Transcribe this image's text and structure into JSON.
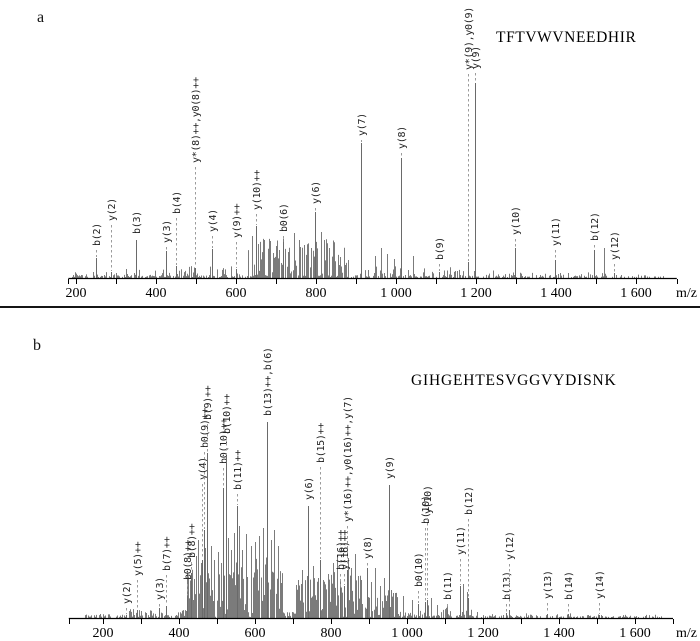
{
  "page": {
    "background": "#ffffff"
  },
  "colors": {
    "noise_peak": "#7b7b7b",
    "annotated_peak": "#6a6a6a",
    "axis": "#000000",
    "label": "#222222",
    "leader_dash": "#9b9b9b",
    "divider": "#151515"
  },
  "chart_data": [
    {
      "type": "bar",
      "subtype": "ms2-fragment-spectrum",
      "panel_label": "a",
      "title": "TFTVWVNEEDHIR",
      "xlabel": "m/z",
      "x_range": [
        181,
        1702
      ],
      "ylim": [
        0,
        210
      ],
      "grid": false,
      "ticks": {
        "minor_first": 200,
        "minor_last": 1600,
        "minor_step": 100,
        "major": [
          [
            200,
            "200"
          ],
          [
            400,
            "400"
          ],
          [
            600,
            "600"
          ],
          [
            800,
            "800"
          ],
          [
            1000,
            "1 000"
          ],
          [
            1200,
            "1 200"
          ],
          [
            1400,
            "1 400"
          ],
          [
            1600,
            "1 600"
          ]
        ]
      },
      "annotated_peaks": [
        {
          "label": "b(2)",
          "mz": 249.1,
          "h": 20,
          "lab": 30
        },
        {
          "label": "y(2)",
          "mz": 288.2,
          "h": 6,
          "lab": 55
        },
        {
          "label": "b(3)",
          "mz": 350.2,
          "h": 38,
          "lab": 42
        },
        {
          "label": "y(3)",
          "mz": 425.3,
          "h": 27,
          "lab": 33
        },
        {
          "label": "b(4)",
          "mz": 449.2,
          "h": 12,
          "lab": 62
        },
        {
          "label": "y*(8)++,y0(8)++",
          "mz": 497.3,
          "h": 10,
          "lab": 113
        },
        {
          "label": "y(4)",
          "mz": 540.3,
          "h": 29,
          "lab": 44
        },
        {
          "label": "y(9)++",
          "mz": 599.3,
          "h": 9,
          "lab": 38
        },
        {
          "label": "y(10)++",
          "mz": 648.8,
          "h": 52,
          "lab": 66
        },
        {
          "label": "b0(6)",
          "mz": 716.4,
          "h": 36,
          "lab": 44
        },
        {
          "label": "y(6)",
          "mz": 798.4,
          "h": 66,
          "lab": 72
        },
        {
          "label": "y(7)",
          "mz": 912.4,
          "h": 135,
          "lab": 140
        },
        {
          "label": "y(8)",
          "mz": 1011.5,
          "h": 120,
          "lab": 127
        },
        {
          "label": "b(9)",
          "mz": 1106.5,
          "h": 6,
          "lab": 16
        },
        {
          "label": "y*(9),y0(9)",
          "mz": 1180.5,
          "h": 16,
          "lab": 206
        },
        {
          "label": "y(9)",
          "mz": 1197.6,
          "h": 195,
          "lab": 207
        },
        {
          "label": "y(10)",
          "mz": 1296.6,
          "h": 30,
          "lab": 41
        },
        {
          "label": "y(11)",
          "mz": 1397.7,
          "h": 18,
          "lab": 30
        },
        {
          "label": "b(12)",
          "mz": 1494.7,
          "h": 28,
          "lab": 35
        },
        {
          "label": "y(12)",
          "mz": 1544.8,
          "h": 5,
          "lab": 16
        }
      ],
      "minor_peaks": [
        [
          640,
          42
        ],
        [
          656,
          34
        ],
        [
          671,
          38
        ],
        [
          692,
          25
        ],
        [
          700,
          32
        ],
        [
          708,
          28
        ],
        [
          730,
          26
        ],
        [
          745,
          45
        ],
        [
          757,
          38
        ],
        [
          771,
          33
        ],
        [
          788,
          30
        ],
        [
          812,
          46
        ],
        [
          820,
          38
        ],
        [
          833,
          30
        ],
        [
          845,
          24
        ],
        [
          860,
          21
        ],
        [
          880,
          18
        ],
        [
          948,
          22
        ],
        [
          962,
          30
        ],
        [
          978,
          24
        ],
        [
          995,
          19
        ],
        [
          1042,
          22
        ],
        [
          1519,
          30
        ]
      ],
      "noise": {
        "seed": 11,
        "segments": [
          [
            190,
            1670,
            320,
            1,
            3
          ],
          [
            190,
            300,
            25,
            1,
            6
          ],
          [
            300,
            470,
            40,
            1,
            9
          ],
          [
            470,
            625,
            40,
            1,
            12
          ],
          [
            625,
            875,
            110,
            2,
            40
          ],
          [
            875,
            1160,
            55,
            1,
            12
          ],
          [
            1160,
            1300,
            25,
            1,
            8
          ],
          [
            1300,
            1490,
            25,
            1,
            6
          ],
          [
            1490,
            1670,
            15,
            1,
            5
          ]
        ]
      }
    },
    {
      "type": "bar",
      "subtype": "ms2-fragment-spectrum",
      "panel_label": "b",
      "title": "GIHGEHTESVGGVYDISNK",
      "xlabel": "m/z",
      "x_range": [
        110,
        1700
      ],
      "ylim": [
        0,
        210
      ],
      "grid": false,
      "ticks": {
        "minor_first": 200,
        "minor_last": 1600,
        "minor_step": 100,
        "major": [
          [
            200,
            "200"
          ],
          [
            400,
            "400"
          ],
          [
            600,
            "600"
          ],
          [
            800,
            "800"
          ],
          [
            1000,
            "1 000"
          ],
          [
            1200,
            "1 200"
          ],
          [
            1400,
            "1 400"
          ],
          [
            1600,
            "1 600"
          ]
        ]
      },
      "annotated_peaks": [
        {
          "label": "y(2)",
          "mz": 261.2,
          "h": 3,
          "lab": 12
        },
        {
          "label": "y(5)++",
          "mz": 288.7,
          "h": 8,
          "lab": 40
        },
        {
          "label": "y(3)",
          "mz": 348.2,
          "h": 10,
          "lab": 16
        },
        {
          "label": "b(7)++",
          "mz": 366.7,
          "h": 12,
          "lab": 45
        },
        {
          "label": "b0(8)++",
          "mz": 422.2,
          "h": 22,
          "lab": 36
        },
        {
          "label": "b(8)++",
          "mz": 431.2,
          "h": 45,
          "lab": 58
        },
        {
          "label": "y(4)",
          "mz": 461.3,
          "h": 58,
          "lab": 136
        },
        {
          "label": "b0(9)++",
          "mz": 465.7,
          "h": 88,
          "lab": 168
        },
        {
          "label": "b(9)++",
          "mz": 474.7,
          "h": 165,
          "lab": 196
        },
        {
          "label": "b0(10)++",
          "mz": 515.3,
          "h": 130,
          "lab": 152
        },
        {
          "label": "b(10)++",
          "mz": 524.3,
          "h": 162,
          "lab": 182
        },
        {
          "label": "b(11)++",
          "mz": 552.8,
          "h": 112,
          "lab": 126
        },
        {
          "label": "b(13)++,b(6)",
          "mz": 630.8,
          "h": 196,
          "lab": 200
        },
        {
          "label": "y(6)",
          "mz": 739.4,
          "h": 112,
          "lab": 116
        },
        {
          "label": "b(15)++",
          "mz": 769.9,
          "h": 58,
          "lab": 153
        },
        {
          "label": "b(16)++",
          "mz": 824.4,
          "h": 30,
          "lab": 46
        },
        {
          "label": "y(16)++",
          "mz": 833.4,
          "h": 32,
          "lab": 46
        },
        {
          "label": "y*(16)++,y0(16)++,y(7)",
          "mz": 841.4,
          "h": 48,
          "lab": 94
        },
        {
          "label": "y(8)",
          "mz": 895.5,
          "h": 50,
          "lab": 57
        },
        {
          "label": "y(9)",
          "mz": 952.5,
          "h": 133,
          "lab": 137
        },
        {
          "label": "b0(10)",
          "mz": 1029.5,
          "h": 14,
          "lab": 29
        },
        {
          "label": "b(10)",
          "mz": 1047.5,
          "h": 16,
          "lab": 92
        },
        {
          "label": "y(10)",
          "mz": 1051.5,
          "h": 18,
          "lab": 102
        },
        {
          "label": "b(11)",
          "mz": 1104.5,
          "h": 8,
          "lab": 16
        },
        {
          "label": "y(11)",
          "mz": 1138.6,
          "h": 32,
          "lab": 61
        },
        {
          "label": "b(12)",
          "mz": 1161.6,
          "h": 20,
          "lab": 101
        },
        {
          "label": "b(13)",
          "mz": 1260.6,
          "h": 5,
          "lab": 16
        },
        {
          "label": "y(12)",
          "mz": 1267.6,
          "h": 8,
          "lab": 56
        },
        {
          "label": "y(13)",
          "mz": 1368.7,
          "h": 4,
          "lab": 17
        },
        {
          "label": "b(14)",
          "mz": 1423.7,
          "h": 4,
          "lab": 16
        },
        {
          "label": "y(14)",
          "mz": 1505.7,
          "h": 3,
          "lab": 17
        }
      ],
      "minor_peaks": [
        [
          444,
          62
        ],
        [
          451,
          78
        ],
        [
          458,
          55
        ],
        [
          469,
          70
        ],
        [
          484,
          72
        ],
        [
          492,
          58
        ],
        [
          503,
          66
        ],
        [
          510,
          55
        ],
        [
          530,
          80
        ],
        [
          537,
          68
        ],
        [
          545,
          85
        ],
        [
          557,
          92
        ],
        [
          566,
          68
        ],
        [
          577,
          84
        ],
        [
          590,
          72
        ],
        [
          601,
          76
        ],
        [
          611,
          82
        ],
        [
          621,
          90
        ],
        [
          641,
          78
        ],
        [
          650,
          88
        ],
        [
          661,
          72
        ],
        [
          712,
          38
        ],
        [
          724,
          48
        ],
        [
          737,
          42
        ],
        [
          752,
          52
        ],
        [
          766,
          40
        ],
        [
          780,
          38
        ],
        [
          792,
          44
        ],
        [
          806,
          55
        ],
        [
          815,
          63
        ],
        [
          846,
          60
        ],
        [
          853,
          50
        ],
        [
          862,
          64
        ],
        [
          871,
          42
        ],
        [
          880,
          38
        ],
        [
          905,
          36
        ],
        [
          916,
          50
        ],
        [
          928,
          32
        ],
        [
          940,
          40
        ],
        [
          958,
          28
        ],
        [
          968,
          25
        ],
        [
          990,
          22
        ],
        [
          1012,
          18
        ],
        [
          1062,
          20
        ],
        [
          1078,
          13
        ],
        [
          1148,
          34
        ],
        [
          1158,
          26
        ]
      ],
      "noise": {
        "seed": 23,
        "segments": [
          [
            150,
            1670,
            320,
            1,
            3
          ],
          [
            150,
            262,
            20,
            1,
            4
          ],
          [
            262,
            420,
            45,
            1,
            9
          ],
          [
            420,
            545,
            90,
            4,
            50
          ],
          [
            545,
            672,
            95,
            5,
            62
          ],
          [
            672,
            702,
            10,
            2,
            7
          ],
          [
            702,
            800,
            75,
            4,
            40
          ],
          [
            800,
            888,
            65,
            4,
            48
          ],
          [
            888,
            975,
            45,
            3,
            30
          ],
          [
            975,
            1110,
            40,
            2,
            13
          ],
          [
            1110,
            1235,
            22,
            2,
            9
          ],
          [
            1235,
            1470,
            20,
            1,
            5
          ],
          [
            1470,
            1670,
            12,
            1,
            4
          ]
        ]
      }
    }
  ]
}
